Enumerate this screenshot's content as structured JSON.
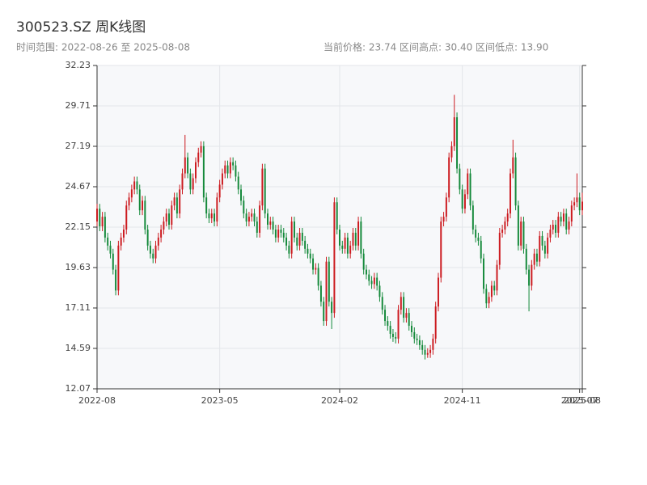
{
  "chart_data": {
    "type": "candlestick",
    "title": "300523.SZ 周K线图",
    "subtitle": "时间范围: 2022-08-26 至 2025-08-08",
    "stats": [
      "当前价格: 23.74",
      "区间高点: 30.40",
      "区间低点: 13.90"
    ],
    "up_color": "#cc1a1f",
    "down_color": "#14893a",
    "xlim": [
      0,
      182
    ],
    "xticks": [
      {
        "value": 0,
        "label": "2022-08"
      },
      {
        "value": 46,
        "label": "2023-05"
      },
      {
        "value": 91,
        "label": "2024-02"
      },
      {
        "value": 137,
        "label": "2024-11"
      },
      {
        "value": 181,
        "label": "2025-07"
      },
      {
        "value": 182,
        "label": "2025-08"
      }
    ],
    "ylim": [
      12.07,
      32.23
    ],
    "yticks": [
      12.07,
      14.59,
      17.11,
      19.63,
      22.15,
      24.67,
      27.19,
      29.71,
      32.23
    ],
    "grid": true,
    "open": [
      22.5,
      23.3,
      22.2,
      22.8,
      21.5,
      21.0,
      20.5,
      19.5,
      18.2,
      21.0,
      21.5,
      22.0,
      23.5,
      24.0,
      24.5,
      25.0,
      24.5,
      23.2,
      23.8,
      22.0,
      21.0,
      20.5,
      20.2,
      21.0,
      21.5,
      22.0,
      22.5,
      23.0,
      22.3,
      23.5,
      24.0,
      23.0,
      24.5,
      25.5,
      26.5,
      25.5,
      24.5,
      25.2,
      26.2,
      26.8,
      27.2,
      24.0,
      23.0,
      22.7,
      23.0,
      22.5,
      24.0,
      24.8,
      25.5,
      26.0,
      25.5,
      26.2,
      26.0,
      25.3,
      24.5,
      23.8,
      23.0,
      22.5,
      22.8,
      23.0,
      22.5,
      21.8,
      23.5,
      25.8,
      23.0,
      22.3,
      22.5,
      22.0,
      21.5,
      22.0,
      21.8,
      21.5,
      21.0,
      20.5,
      22.5,
      21.5,
      21.0,
      21.8,
      21.3,
      20.8,
      20.5,
      20.2,
      19.5,
      19.6,
      18.5,
      17.5,
      16.3,
      20.0,
      17.5,
      16.8,
      23.7,
      22.0,
      21.0,
      20.8,
      21.5,
      20.5,
      21.0,
      21.8,
      21.0,
      22.5,
      20.5,
      19.5,
      19.2,
      18.8,
      18.6,
      19.0,
      18.5,
      17.8,
      17.0,
      16.3,
      16.0,
      15.5,
      15.3,
      15.2,
      17.0,
      17.8,
      16.5,
      16.8,
      16.0,
      15.6,
      15.2,
      15.1,
      14.8,
      14.5,
      14.2,
      14.3,
      14.5,
      15.2,
      17.2,
      19.0,
      22.5,
      22.8,
      24.0,
      26.5,
      27.2,
      29.0,
      25.8,
      24.5,
      23.3,
      24.2,
      25.5,
      23.5,
      22.0,
      21.5,
      21.3,
      20.2,
      18.3,
      17.4,
      17.8,
      18.5,
      18.2,
      19.8,
      21.8,
      22.0,
      22.5,
      23.0,
      25.5,
      26.5,
      23.5,
      21.0,
      22.5,
      20.8,
      19.5,
      18.5,
      19.8,
      20.5,
      20.0,
      21.6,
      21.0,
      20.5,
      21.5,
      22.0,
      22.3,
      21.8,
      22.8,
      22.5,
      23.0,
      22.0,
      22.5,
      23.5,
      23.7,
      24.0,
      23.2
    ],
    "high": [
      23.6,
      23.6,
      23.1,
      23.1,
      21.8,
      21.3,
      20.8,
      19.8,
      21.3,
      21.8,
      22.3,
      23.8,
      24.3,
      24.8,
      25.3,
      25.3,
      24.8,
      24.1,
      24.1,
      22.3,
      21.3,
      20.8,
      21.3,
      21.8,
      22.3,
      22.8,
      23.3,
      23.3,
      23.8,
      24.3,
      24.3,
      24.8,
      25.8,
      27.9,
      26.8,
      25.8,
      25.5,
      26.5,
      27.1,
      27.5,
      27.5,
      24.3,
      23.3,
      23.3,
      23.3,
      24.3,
      25.1,
      25.8,
      26.3,
      26.3,
      26.5,
      26.5,
      26.3,
      25.6,
      24.8,
      24.1,
      23.3,
      23.1,
      23.3,
      23.3,
      22.8,
      23.8,
      26.1,
      26.1,
      23.3,
      22.8,
      22.8,
      22.3,
      22.3,
      22.3,
      22.1,
      21.8,
      21.3,
      22.8,
      22.8,
      21.8,
      22.1,
      22.1,
      21.6,
      21.1,
      20.8,
      20.5,
      19.9,
      19.9,
      18.8,
      17.8,
      20.3,
      20.3,
      17.8,
      24.0,
      24.0,
      22.3,
      21.3,
      21.8,
      21.8,
      21.3,
      22.1,
      22.1,
      22.8,
      22.8,
      20.8,
      19.8,
      19.5,
      19.1,
      19.3,
      19.3,
      18.8,
      18.1,
      17.3,
      16.6,
      16.3,
      15.8,
      15.6,
      17.3,
      18.1,
      18.1,
      17.1,
      17.1,
      16.3,
      15.9,
      15.5,
      15.4,
      15.1,
      14.8,
      14.6,
      14.8,
      15.5,
      17.5,
      19.3,
      22.8,
      23.1,
      24.3,
      26.8,
      27.5,
      30.4,
      29.3,
      26.1,
      24.8,
      24.5,
      25.8,
      25.8,
      23.8,
      22.3,
      21.8,
      21.6,
      20.5,
      18.6,
      18.1,
      18.8,
      18.8,
      20.1,
      22.1,
      22.3,
      22.8,
      23.3,
      25.8,
      27.6,
      26.8,
      23.8,
      22.8,
      22.8,
      21.1,
      19.8,
      20.1,
      20.8,
      20.8,
      21.9,
      21.9,
      21.3,
      21.8,
      22.3,
      22.6,
      22.6,
      23.1,
      23.1,
      23.3,
      23.3,
      22.8,
      23.8,
      24.0,
      25.5,
      24.3,
      24.3
    ],
    "low": [
      22.2,
      21.9,
      21.9,
      21.2,
      20.7,
      20.2,
      19.2,
      17.9,
      17.9,
      20.7,
      21.2,
      21.7,
      23.2,
      23.7,
      24.2,
      24.2,
      22.9,
      22.9,
      21.7,
      20.7,
      20.2,
      19.9,
      19.9,
      20.7,
      21.2,
      21.7,
      22.2,
      22.0,
      22.0,
      23.2,
      22.7,
      22.7,
      24.2,
      25.2,
      25.2,
      24.2,
      24.2,
      24.9,
      25.9,
      26.5,
      23.7,
      22.7,
      22.4,
      22.4,
      22.2,
      22.2,
      23.7,
      24.5,
      25.2,
      25.2,
      25.2,
      25.7,
      25.0,
      24.2,
      23.5,
      22.7,
      22.2,
      22.2,
      22.5,
      22.2,
      21.5,
      21.5,
      23.2,
      22.7,
      22.0,
      22.0,
      21.7,
      21.2,
      21.2,
      21.5,
      21.2,
      20.7,
      20.2,
      20.2,
      21.2,
      20.7,
      20.7,
      21.0,
      20.5,
      20.2,
      19.9,
      19.2,
      19.2,
      18.2,
      17.2,
      16.0,
      16.0,
      17.2,
      15.8,
      16.5,
      21.7,
      20.7,
      20.5,
      20.5,
      20.2,
      20.2,
      20.7,
      20.7,
      20.7,
      20.2,
      19.2,
      18.9,
      18.5,
      18.3,
      18.3,
      18.2,
      17.5,
      16.7,
      16.0,
      15.7,
      15.2,
      15.0,
      14.9,
      14.9,
      16.7,
      16.2,
      16.2,
      15.7,
      15.3,
      14.9,
      14.8,
      14.5,
      14.2,
      13.9,
      14.0,
      14.0,
      14.2,
      14.9,
      16.9,
      18.7,
      22.2,
      22.5,
      23.7,
      26.2,
      26.9,
      25.5,
      24.2,
      23.0,
      23.0,
      23.9,
      23.2,
      21.7,
      21.2,
      21.0,
      19.9,
      18.0,
      17.1,
      17.1,
      17.5,
      17.9,
      17.9,
      19.5,
      21.5,
      21.7,
      22.2,
      22.7,
      25.2,
      23.2,
      20.7,
      20.7,
      20.5,
      19.2,
      16.9,
      18.2,
      19.5,
      19.7,
      19.7,
      20.7,
      20.2,
      20.2,
      21.2,
      21.7,
      21.5,
      21.5,
      22.2,
      22.2,
      21.7,
      21.7,
      22.2,
      23.2,
      23.4,
      22.9,
      22.9
    ],
    "close": [
      23.3,
      22.2,
      22.8,
      21.5,
      21.0,
      20.5,
      19.5,
      18.2,
      21.0,
      21.5,
      22.0,
      23.5,
      24.0,
      24.5,
      25.0,
      24.5,
      23.2,
      23.8,
      22.0,
      21.0,
      20.5,
      20.2,
      21.0,
      21.5,
      22.0,
      22.5,
      23.0,
      22.3,
      23.5,
      24.0,
      23.0,
      24.5,
      25.5,
      26.5,
      25.5,
      24.5,
      25.2,
      26.2,
      26.8,
      27.2,
      24.0,
      23.0,
      22.7,
      23.0,
      22.5,
      24.0,
      24.8,
      25.5,
      26.0,
      25.5,
      26.2,
      26.0,
      25.3,
      24.5,
      23.8,
      23.0,
      22.5,
      22.8,
      23.0,
      22.5,
      21.8,
      23.5,
      25.8,
      23.0,
      22.3,
      22.5,
      22.0,
      21.5,
      22.0,
      21.8,
      21.5,
      21.0,
      20.5,
      22.5,
      21.5,
      21.0,
      21.8,
      21.3,
      20.8,
      20.5,
      20.2,
      19.5,
      19.6,
      18.5,
      17.5,
      16.3,
      20.0,
      17.5,
      16.8,
      23.7,
      22.0,
      21.0,
      20.8,
      21.5,
      20.5,
      21.0,
      21.8,
      21.0,
      22.5,
      20.5,
      19.5,
      19.2,
      18.8,
      18.6,
      19.0,
      18.5,
      17.8,
      17.0,
      16.3,
      16.0,
      15.5,
      15.3,
      15.2,
      17.0,
      17.8,
      16.5,
      16.8,
      16.0,
      15.6,
      15.2,
      15.1,
      14.8,
      14.5,
      14.2,
      14.3,
      14.5,
      15.2,
      17.2,
      19.0,
      22.5,
      22.8,
      24.0,
      26.5,
      27.2,
      29.0,
      25.8,
      24.5,
      23.3,
      24.2,
      25.5,
      23.5,
      22.0,
      21.5,
      21.3,
      20.2,
      18.3,
      17.4,
      17.8,
      18.5,
      18.2,
      19.8,
      21.8,
      22.0,
      22.5,
      23.0,
      25.5,
      26.5,
      23.5,
      21.0,
      22.5,
      20.8,
      19.5,
      18.5,
      19.8,
      20.5,
      20.0,
      21.6,
      21.0,
      20.5,
      21.5,
      22.0,
      22.3,
      21.8,
      22.8,
      22.5,
      23.0,
      22.0,
      22.5,
      23.5,
      23.7,
      24.0,
      23.2,
      23.74
    ]
  }
}
